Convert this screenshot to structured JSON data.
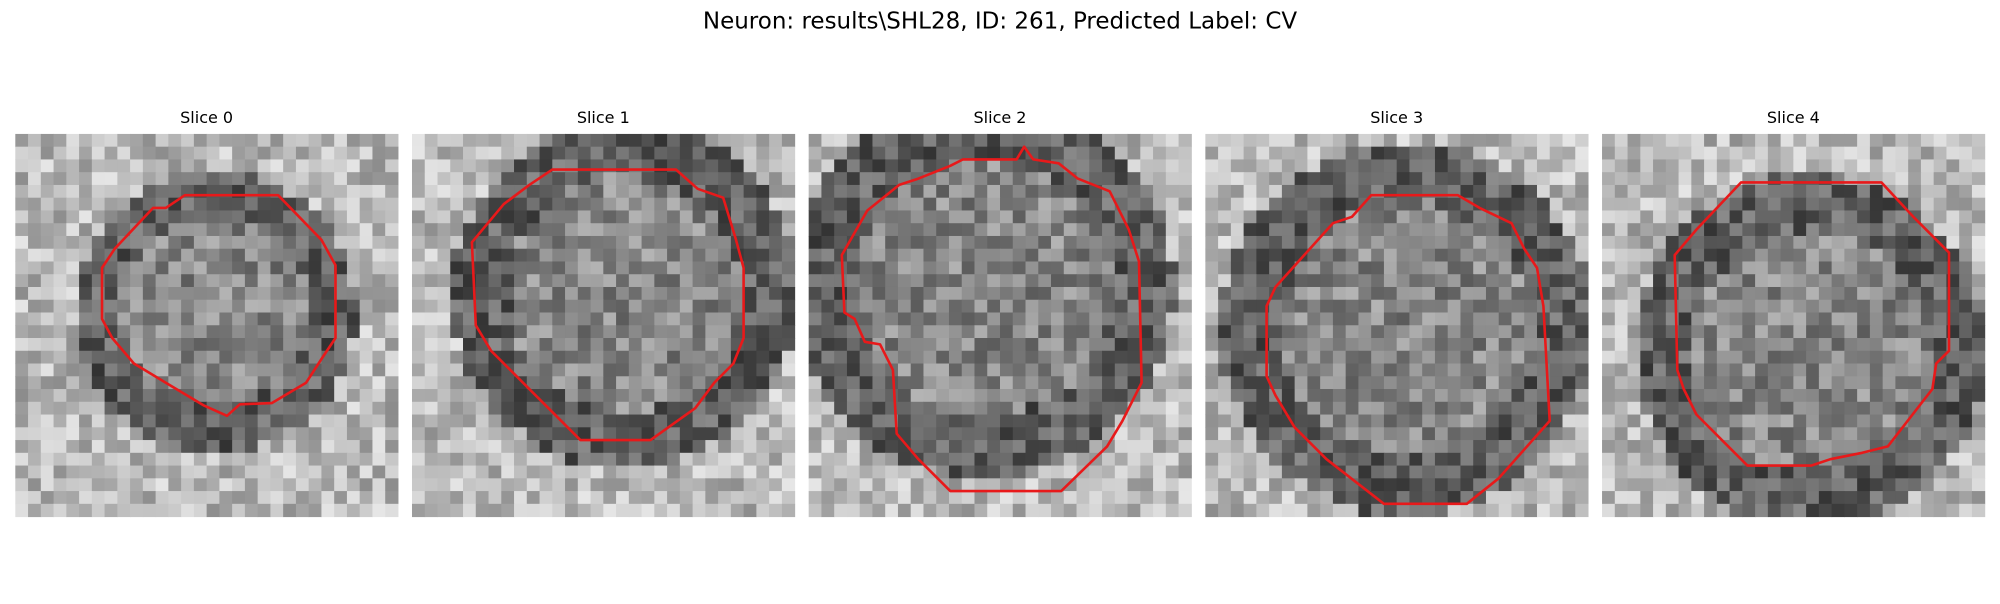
{
  "title": "Neuron: results\\SHL28, ID: 261, Predicted Label: CV",
  "panels": [
    {
      "title": "Slice 0"
    },
    {
      "title": "Slice 1"
    },
    {
      "title": "Slice 2"
    },
    {
      "title": "Slice 3"
    },
    {
      "title": "Slice 4"
    }
  ]
}
